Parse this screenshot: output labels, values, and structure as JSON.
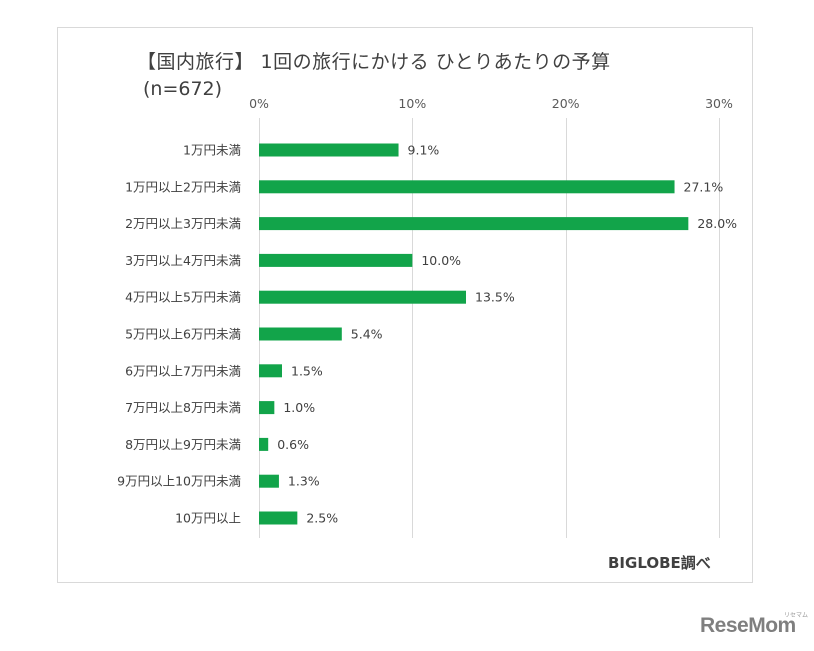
{
  "chart_data": {
    "type": "bar",
    "orientation": "horizontal",
    "title": "【国内旅行】 1回の旅行にかける ひとりあたりの予算",
    "subtitle": "(n=672)",
    "categories": [
      "1万円未満",
      "1万円以上2万円未満",
      "2万円以上3万円未満",
      "3万円以上4万円未満",
      "4万円以上5万円未満",
      "5万円以上6万円未満",
      "6万円以上7万円未満",
      "7万円以上8万円未満",
      "8万円以上9万円未満",
      "9万円以上10万円未満",
      "10万円以上"
    ],
    "values": [
      9.1,
      27.1,
      28.0,
      10.0,
      13.5,
      5.4,
      1.5,
      1.0,
      0.6,
      1.3,
      2.5
    ],
    "value_labels": [
      "9.1%",
      "27.1%",
      "28.0%",
      "10.0%",
      "13.5%",
      "5.4%",
      "1.5%",
      "1.0%",
      "0.6%",
      "1.3%",
      "2.5%"
    ],
    "xlim": [
      0,
      30
    ],
    "xticks": [
      0,
      10,
      20,
      30
    ],
    "xtick_labels": [
      "0%",
      "10%",
      "20%",
      "30%"
    ],
    "axis_position": "top",
    "grid": true,
    "bar_color": "#12a44a",
    "source": "BIGLOBE調べ"
  },
  "watermark": {
    "text": "ReseMom",
    "small_text": "リセマム"
  }
}
